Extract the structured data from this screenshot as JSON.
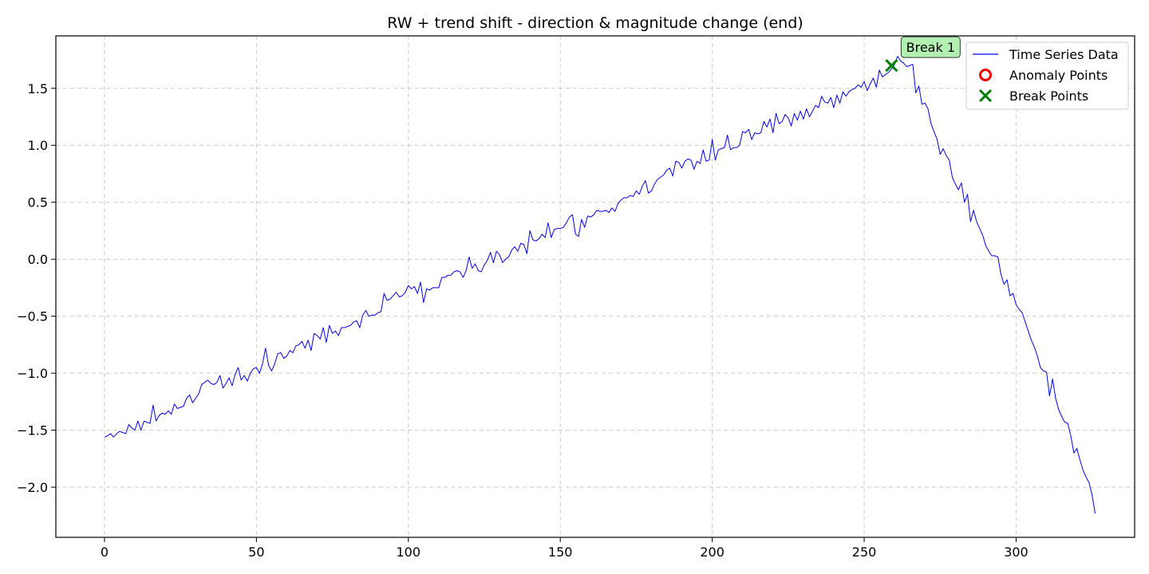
{
  "chart_data": {
    "type": "line",
    "title": "RW + trend shift - direction & magnitude change (end)",
    "xlabel": "",
    "ylabel": "",
    "xlim": [
      -16,
      339
    ],
    "ylim": [
      -2.44,
      1.96
    ],
    "xticks": [
      0,
      50,
      100,
      150,
      200,
      250,
      300
    ],
    "xtick_labels": [
      "0",
      "50",
      "100",
      "150",
      "200",
      "250",
      "300"
    ],
    "yticks": [
      -2.0,
      -1.5,
      -1.0,
      -0.5,
      0.0,
      0.5,
      1.0,
      1.5
    ],
    "ytick_labels": [
      "−2.0",
      "−1.5",
      "−1.0",
      "−0.5",
      "0.0",
      "0.5",
      "1.0",
      "1.5"
    ],
    "grid": true,
    "legend_position": "top-right",
    "colors": {
      "series": "#0000ff",
      "anomaly": "#ff0000",
      "break": "#008000",
      "grid": "#cccccc",
      "annotation_fill": "#b2f0b2"
    },
    "series": [
      {
        "name": "Time Series Data",
        "x_start": 0,
        "x_step": 1,
        "values": [
          -1.56,
          -1.55,
          -1.53,
          -1.56,
          -1.53,
          -1.51,
          -1.52,
          -1.53,
          -1.45,
          -1.48,
          -1.5,
          -1.42,
          -1.5,
          -1.42,
          -1.43,
          -1.44,
          -1.28,
          -1.42,
          -1.37,
          -1.35,
          -1.36,
          -1.33,
          -1.36,
          -1.27,
          -1.31,
          -1.3,
          -1.29,
          -1.22,
          -1.19,
          -1.26,
          -1.22,
          -1.18,
          -1.1,
          -1.08,
          -1.06,
          -1.09,
          -1.1,
          -1.08,
          -1.02,
          -1.13,
          -1.09,
          -1.04,
          -1.11,
          -1.01,
          -0.95,
          -1.06,
          -1.02,
          -1.07,
          -1.0,
          -0.96,
          -0.95,
          -1.0,
          -0.92,
          -0.78,
          -0.93,
          -0.98,
          -0.92,
          -0.83,
          -0.82,
          -0.87,
          -0.85,
          -0.8,
          -0.82,
          -0.76,
          -0.75,
          -0.72,
          -0.78,
          -0.71,
          -0.8,
          -0.65,
          -0.67,
          -0.7,
          -0.6,
          -0.73,
          -0.58,
          -0.65,
          -0.63,
          -0.67,
          -0.6,
          -0.6,
          -0.59,
          -0.58,
          -0.55,
          -0.54,
          -0.6,
          -0.49,
          -0.45,
          -0.5,
          -0.49,
          -0.49,
          -0.47,
          -0.46,
          -0.3,
          -0.36,
          -0.35,
          -0.32,
          -0.29,
          -0.33,
          -0.32,
          -0.29,
          -0.23,
          -0.26,
          -0.24,
          -0.3,
          -0.2,
          -0.38,
          -0.26,
          -0.27,
          -0.25,
          -0.25,
          -0.25,
          -0.16,
          -0.16,
          -0.14,
          -0.14,
          -0.11,
          -0.1,
          -0.11,
          -0.16,
          -0.1,
          0.02,
          -0.08,
          -0.04,
          -0.1,
          -0.11,
          -0.05,
          -0.01,
          0.06,
          -0.03,
          0.07,
          0.04,
          -0.03,
          0.0,
          0.02,
          0.08,
          0.11,
          0.07,
          0.14,
          0.13,
          0.05,
          0.25,
          0.17,
          0.16,
          0.18,
          0.22,
          0.19,
          0.32,
          0.19,
          0.26,
          0.27,
          0.27,
          0.28,
          0.32,
          0.37,
          0.39,
          0.22,
          0.2,
          0.35,
          0.28,
          0.38,
          0.37,
          0.39,
          0.43,
          0.42,
          0.42,
          0.43,
          0.41,
          0.45,
          0.42,
          0.49,
          0.52,
          0.54,
          0.54,
          0.56,
          0.55,
          0.6,
          0.57,
          0.64,
          0.69,
          0.58,
          0.6,
          0.66,
          0.7,
          0.72,
          0.74,
          0.78,
          0.8,
          0.73,
          0.86,
          0.85,
          0.8,
          0.86,
          0.88,
          0.87,
          0.79,
          0.86,
          0.84,
          0.96,
          0.86,
          0.87,
          1.05,
          0.87,
          0.96,
          0.97,
          0.98,
          1.09,
          0.96,
          0.98,
          0.98,
          1.0,
          1.12,
          1.11,
          1.14,
          1.05,
          1.11,
          1.1,
          1.11,
          1.21,
          1.16,
          1.23,
          1.11,
          1.28,
          1.19,
          1.21,
          1.27,
          1.24,
          1.17,
          1.28,
          1.22,
          1.3,
          1.23,
          1.32,
          1.25,
          1.3,
          1.35,
          1.33,
          1.43,
          1.38,
          1.37,
          1.42,
          1.33,
          1.44,
          1.37,
          1.47,
          1.43,
          1.47,
          1.49,
          1.5,
          1.53,
          1.51,
          1.56,
          1.48,
          1.54,
          1.59,
          1.51,
          1.66,
          1.6,
          1.62,
          1.64,
          1.67,
          1.71,
          1.78,
          1.74,
          1.72,
          1.69,
          1.7,
          1.71,
          1.46,
          1.52,
          1.36,
          1.37,
          1.32,
          1.19,
          1.12,
          1.05,
          0.92,
          0.97,
          0.91,
          0.87,
          0.72,
          0.66,
          0.61,
          0.67,
          0.5,
          0.57,
          0.33,
          0.43,
          0.33,
          0.27,
          0.21,
          0.12,
          0.07,
          0.03,
          0.03,
          0.02,
          -0.13,
          -0.22,
          -0.18,
          -0.32,
          -0.3,
          -0.4,
          -0.44,
          -0.47,
          -0.55,
          -0.63,
          -0.71,
          -0.77,
          -0.85,
          -0.95,
          -0.98,
          -0.99,
          -1.2,
          -1.05,
          -1.22,
          -1.32,
          -1.38,
          -1.43,
          -1.44,
          -1.55,
          -1.7,
          -1.66,
          -1.76,
          -1.85,
          -1.91,
          -1.96,
          -2.07,
          -2.23
        ]
      },
      {
        "name": "Anomaly Points",
        "points": []
      },
      {
        "name": "Break Points",
        "points": [
          {
            "x": 259,
            "y": 1.7,
            "label": "Break 1"
          }
        ]
      }
    ],
    "legend": [
      {
        "label": "Time Series Data",
        "marker": "line"
      },
      {
        "label": "Anomaly Points",
        "marker": "circle"
      },
      {
        "label": "Break Points",
        "marker": "x"
      }
    ]
  }
}
